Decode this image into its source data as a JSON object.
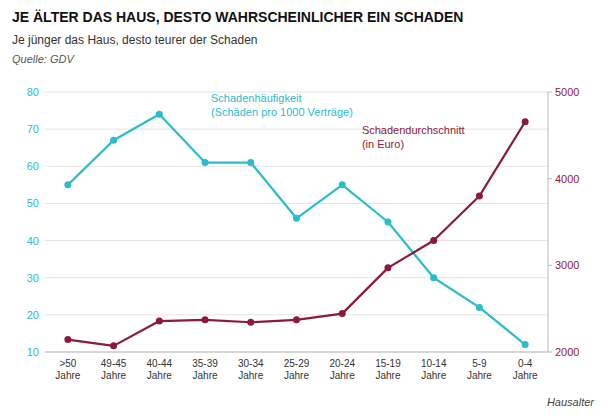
{
  "chart_data": {
    "type": "line",
    "title": "JE ÄLTER DAS HAUS, DESTO WAHRSCHEINLICHER EIN SCHADEN",
    "subtitle": "Je jünger das Haus, desto teurer der Schaden",
    "source": "Quelle: GDV",
    "xlabel": "Hausalter",
    "categories": [
      ">50\nJahre",
      "49-45\nJahre",
      "40-44\nJahre",
      "35-39\nJahre",
      "30-34\nJahre",
      "25-29\nJahre",
      "20-24\nJahre",
      "15-19\nJahre",
      "10-14\nJahre",
      "5-9\nJahre",
      "0-4\nJahre"
    ],
    "series": [
      {
        "name": "Schadenhäufigkeit\n(Schäden pro 1000 Verträge)",
        "color": "#2bbccc",
        "marker": "circle",
        "values": [
          55,
          67,
          74,
          61,
          61,
          46,
          55,
          45,
          30,
          22,
          12
        ]
      },
      {
        "name": "Schadendurchschnitt\n(in Euro)",
        "color": "#8b1a3a",
        "marker": "circle",
        "axis": "y2",
        "values": [
          2143,
          2071,
          2357,
          2371,
          2343,
          2371,
          2443,
          2971,
          3286,
          3800,
          4657
        ]
      }
    ],
    "ylim": [
      10,
      80
    ],
    "yticks": [
      10,
      20,
      30,
      40,
      50,
      60,
      70,
      80
    ],
    "y2lim": [
      2000,
      5000
    ],
    "y2ticks": [
      2000,
      3000,
      4000,
      5000
    ],
    "grid": true
  }
}
